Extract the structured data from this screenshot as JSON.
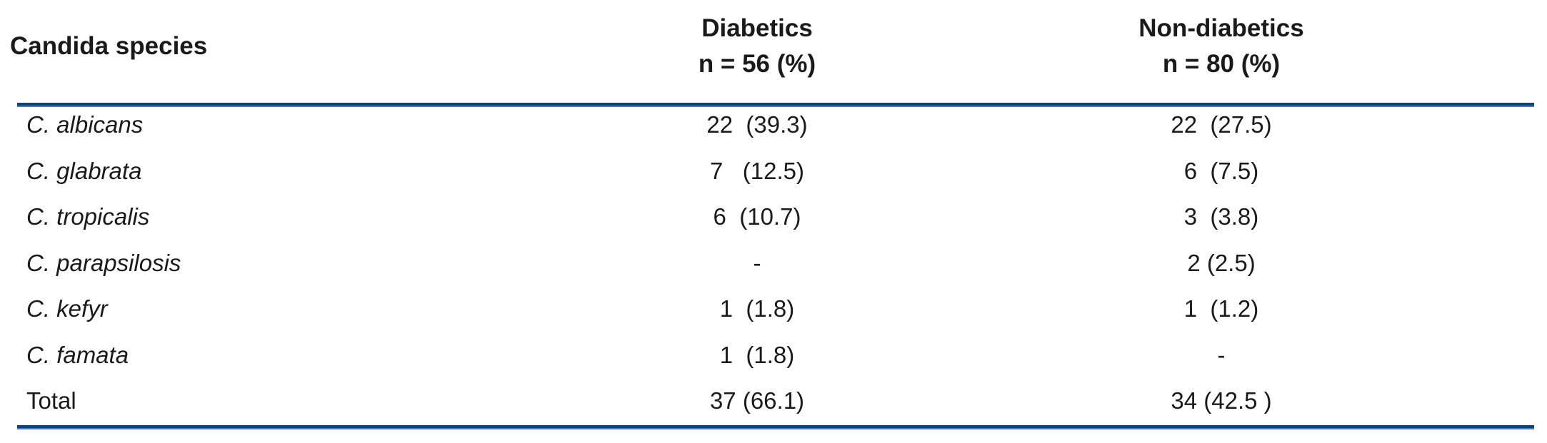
{
  "table": {
    "columns": [
      {
        "label": "Candida species",
        "sublabel": ""
      },
      {
        "label": "Diabetics",
        "sublabel": "n = 56 (%)"
      },
      {
        "label": "Non-diabetics",
        "sublabel": "n = 80 (%)"
      }
    ],
    "rows": [
      {
        "species": "C. albicans",
        "italic": true,
        "diabetics": "22  (39.3)",
        "non_diabetics": "22  (27.5)"
      },
      {
        "species": "C. glabrata",
        "italic": true,
        "diabetics": "7   (12.5)",
        "non_diabetics": "6  (7.5)"
      },
      {
        "species": "C. tropicalis",
        "italic": true,
        "diabetics": "6  (10.7)",
        "non_diabetics": "3  (3.8)"
      },
      {
        "species": "C. parapsilosis",
        "italic": true,
        "diabetics": "-",
        "non_diabetics": "2 (2.5)"
      },
      {
        "species": "C. kefyr",
        "italic": true,
        "diabetics": "1  (1.8)",
        "non_diabetics": "1  (1.2)"
      },
      {
        "species": "C. famata",
        "italic": true,
        "diabetics": "1  (1.8)",
        "non_diabetics": "-"
      },
      {
        "species": "Total",
        "italic": false,
        "diabetics": "37 (66.1)",
        "non_diabetics": "34 (42.5 )"
      }
    ]
  },
  "colors": {
    "rule_dark": "#0d4379",
    "rule_light": "#4e79b6",
    "text": "#1a1a1a",
    "background": "#ffffff"
  }
}
